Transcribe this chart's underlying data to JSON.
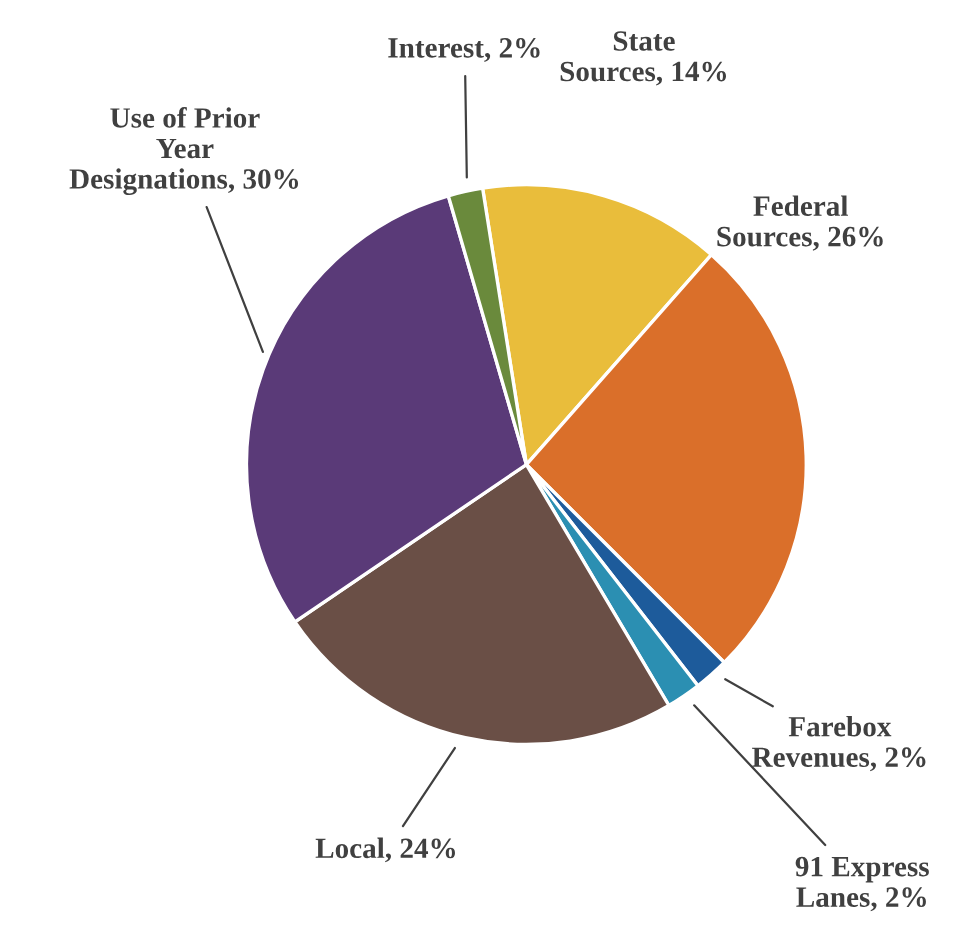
{
  "chart_data": {
    "type": "pie",
    "categories": [
      "State\nSources",
      "Federal\nSources",
      "Farebox\nRevenues",
      "91 Express\nLanes",
      "Local",
      "Use of Prior\nYear\nDesignations",
      "Interest"
    ],
    "values": [
      14,
      26,
      2,
      2,
      24,
      30,
      2
    ],
    "value_labels": [
      "14%",
      "26%",
      "2%",
      "2%",
      "24%",
      "30%",
      "2%"
    ],
    "colors": [
      "#e9bd3b",
      "#da6f2a",
      "#1d5b9b",
      "#2b8fb2",
      "#6a4f46",
      "#5a3a78",
      "#6a8a3c"
    ]
  }
}
